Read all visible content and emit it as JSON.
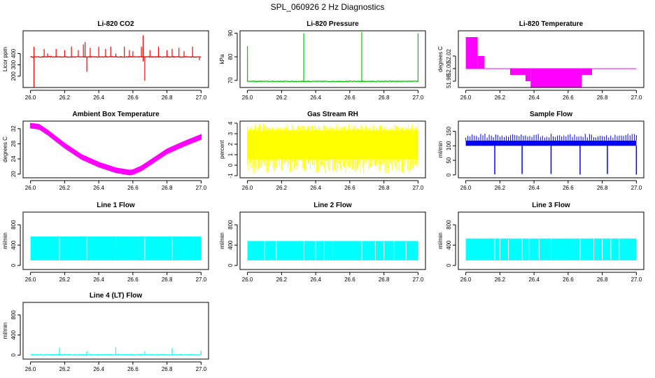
{
  "figure_title": "SPL_060926  2 Hz Diagnostics",
  "chart_data": [
    {
      "type": "line",
      "title": "Li-820 CO2",
      "ylabel": "Licor ppm",
      "xlim": [
        26.0,
        27.0
      ],
      "ylim": [
        100,
        600
      ],
      "xticks": [
        "26.0",
        "26.2",
        "26.4",
        "26.6",
        "26.8",
        "27.0"
      ],
      "xtick_values": [
        26.0,
        26.2,
        26.4,
        26.6,
        26.8,
        27.0
      ],
      "yticks": [
        "200",
        "300",
        "400"
      ],
      "ytick_values": [
        200,
        300,
        400
      ],
      "color": "#ff0000",
      "style": "line",
      "series": [
        {
          "name": "CO2",
          "baseline": 370,
          "x": [
            26.02,
            26.08,
            26.1,
            26.12,
            26.15,
            26.2,
            26.24,
            26.28,
            26.31,
            26.32,
            26.33,
            26.35,
            26.4,
            26.44,
            26.47,
            26.5,
            26.55,
            26.58,
            26.6,
            26.65,
            26.66,
            26.67,
            26.7,
            26.75,
            26.8,
            26.83,
            26.87,
            26.9,
            26.95
          ],
          "y": [
            460,
            440,
            400,
            380,
            440,
            430,
            460,
            430,
            480,
            500,
            240,
            450,
            460,
            440,
            460,
            400,
            460,
            430,
            420,
            460,
            560,
            160,
            430,
            460,
            430,
            440,
            450,
            420,
            460
          ],
          "dips": [
            {
              "x": 26.02,
              "y": 100
            },
            {
              "x": 26.66,
              "y": 330
            },
            {
              "x": 26.99,
              "y": 340
            }
          ]
        }
      ]
    },
    {
      "type": "line",
      "title": "Li-820 Pressure",
      "ylabel": "kPa",
      "xlim": [
        26.0,
        27.0
      ],
      "ylim": [
        67,
        91
      ],
      "xticks": [
        "26.0",
        "26.2",
        "26.4",
        "26.6",
        "26.8",
        "27.0"
      ],
      "xtick_values": [
        26.0,
        26.2,
        26.4,
        26.6,
        26.8,
        27.0
      ],
      "yticks": [
        "70",
        "80",
        "90"
      ],
      "ytick_values": [
        70,
        80,
        90
      ],
      "color": "#00cc00",
      "style": "line",
      "series": [
        {
          "name": "Pressure",
          "baseline": 69.6,
          "x": [
            26.0,
            26.33,
            26.67,
            27.0
          ],
          "y": [
            84.5,
            90.0,
            90.5,
            90.0
          ],
          "dips": []
        }
      ]
    },
    {
      "type": "step",
      "title": "Li-820 Temperature",
      "ylabel": "degrees C",
      "xlim": [
        26.0,
        27.0
      ],
      "ylim": [
        51.97,
        52.06
      ],
      "xticks": [
        "26.0",
        "26.2",
        "26.4",
        "26.6",
        "26.8",
        "27.0"
      ],
      "xtick_values": [
        26.0,
        26.2,
        26.4,
        26.6,
        26.8,
        27.0
      ],
      "yticks": [
        "51.98",
        "52.00",
        "52.02"
      ],
      "ytick_values": [
        51.98,
        52.0,
        52.02
      ],
      "color": "#ff00ff",
      "style": "step",
      "series": [
        {
          "name": "Temperature",
          "baseline": 52.0,
          "blocks": [
            [
              26.0,
              26.07,
              52.0,
              52.05
            ],
            [
              26.07,
              26.11,
              52.0,
              52.02
            ],
            [
              26.26,
              26.35,
              51.99,
              52.0
            ],
            [
              26.35,
              26.38,
              51.98,
              52.0
            ],
            [
              26.38,
              26.68,
              51.97,
              52.0
            ],
            [
              26.68,
              26.74,
              51.99,
              52.0
            ]
          ]
        }
      ]
    },
    {
      "type": "band",
      "title": "Ambient Box Temperature",
      "ylabel": "degrees C",
      "xlim": [
        26.0,
        27.0
      ],
      "ylim": [
        19,
        34
      ],
      "xticks": [
        "26.0",
        "26.2",
        "26.4",
        "26.6",
        "26.8",
        "27.0"
      ],
      "xtick_values": [
        26.0,
        26.2,
        26.4,
        26.6,
        26.8,
        27.0
      ],
      "yticks": [
        "20",
        "24",
        "28",
        "32"
      ],
      "ytick_values": [
        20,
        24,
        28,
        32
      ],
      "color": "#ff00ff",
      "style": "band",
      "series": [
        {
          "name": "Box Temp",
          "half_width": 0.6,
          "x": [
            26.0,
            26.05,
            26.1,
            26.2,
            26.3,
            26.4,
            26.5,
            26.58,
            26.6,
            26.65,
            26.7,
            26.8,
            26.9,
            27.0
          ],
          "y": [
            32.8,
            32.5,
            31.0,
            27.5,
            24.5,
            22.5,
            21.0,
            20.4,
            20.5,
            21.5,
            23.0,
            26.0,
            28.0,
            29.8
          ]
        }
      ]
    },
    {
      "type": "band",
      "title": "Gas Stream RH",
      "ylabel": "percent",
      "xlim": [
        26.0,
        27.0
      ],
      "ylim": [
        -1.2,
        4.2
      ],
      "xticks": [
        "26.0",
        "26.2",
        "26.4",
        "26.6",
        "26.8",
        "27.0"
      ],
      "xtick_values": [
        26.0,
        26.2,
        26.4,
        26.6,
        26.8,
        27.0
      ],
      "yticks": [
        "-1",
        "0",
        "1",
        "2",
        "3",
        "4"
      ],
      "ytick_values": [
        -1,
        0,
        1,
        2,
        3,
        4
      ],
      "color": "#ffff00",
      "style": "band",
      "series": [
        {
          "name": "RH",
          "x": [
            26.0,
            27.0
          ],
          "upper": [
            3.3,
            3.3
          ],
          "lower": [
            0.6,
            0.6
          ]
        }
      ]
    },
    {
      "type": "line",
      "title": "Sample Flow",
      "ylabel": "ml/min",
      "xlim": [
        26.0,
        27.0
      ],
      "ylim": [
        -10,
        185
      ],
      "xticks": [
        "26.0",
        "26.2",
        "26.4",
        "26.6",
        "26.8",
        "27.0"
      ],
      "xtick_values": [
        26.0,
        26.2,
        26.4,
        26.6,
        26.8,
        27.0
      ],
      "yticks": [
        "0",
        "50",
        "100",
        "150"
      ],
      "ytick_values": [
        0,
        50,
        100,
        150
      ],
      "color": "#0000ff",
      "style": "band",
      "series": [
        {
          "name": "Sample Flow",
          "upper": 118,
          "lower": 100,
          "dips": [
            {
              "x": 26.17,
              "y": 2
            },
            {
              "x": 26.33,
              "y": 3
            },
            {
              "x": 26.5,
              "y": 3
            },
            {
              "x": 26.67,
              "y": 1
            },
            {
              "x": 26.83,
              "y": 3
            },
            {
              "x": 27.0,
              "y": 1
            }
          ]
        }
      ]
    },
    {
      "type": "band",
      "title": "Line 1 Flow",
      "ylabel": "ml/min",
      "xlim": [
        26.0,
        27.0
      ],
      "ylim": [
        -80,
        1050
      ],
      "xticks": [
        "26.0",
        "26.2",
        "26.4",
        "26.6",
        "26.8",
        "27.0"
      ],
      "xtick_values": [
        26.0,
        26.2,
        26.4,
        26.6,
        26.8,
        27.0
      ],
      "yticks": [
        "0",
        "400",
        "800"
      ],
      "ytick_values": [
        0,
        400,
        800
      ],
      "color": "#00ffff",
      "style": "band",
      "series": [
        {
          "name": "Line 1",
          "upper": 570,
          "lower": 100,
          "gaps": [
            26.17,
            26.33,
            26.5,
            26.67,
            26.83
          ]
        }
      ]
    },
    {
      "type": "band",
      "title": "Line 2 Flow",
      "ylabel": "ml/min",
      "xlim": [
        26.0,
        27.0
      ],
      "ylim": [
        -80,
        1050
      ],
      "xticks": [
        "26.0",
        "26.2",
        "26.4",
        "26.6",
        "26.8",
        "27.0"
      ],
      "xtick_values": [
        26.0,
        26.2,
        26.4,
        26.6,
        26.8,
        27.0
      ],
      "yticks": [
        "0",
        "400",
        "800"
      ],
      "ytick_values": [
        0,
        400,
        800
      ],
      "color": "#00ffff",
      "style": "band",
      "series": [
        {
          "name": "Line 2",
          "upper": 480,
          "lower": 100,
          "gaps": [
            26.1,
            26.17,
            26.33,
            26.4,
            26.45,
            26.5,
            26.67,
            26.75,
            26.8,
            26.86,
            26.93
          ]
        }
      ]
    },
    {
      "type": "band",
      "title": "Line 3 Flow",
      "ylabel": "ml/min",
      "xlim": [
        26.0,
        27.0
      ],
      "ylim": [
        -80,
        1050
      ],
      "xticks": [
        "26.0",
        "26.2",
        "26.4",
        "26.6",
        "26.8",
        "27.0"
      ],
      "xtick_values": [
        26.0,
        26.2,
        26.4,
        26.6,
        26.8,
        27.0
      ],
      "yticks": [
        "0",
        "400",
        "800"
      ],
      "ytick_values": [
        0,
        400,
        800
      ],
      "color": "#00ffff",
      "style": "band",
      "series": [
        {
          "name": "Line 3",
          "upper": 530,
          "lower": 100,
          "gaps": [
            26.17,
            26.2,
            26.25,
            26.33,
            26.37,
            26.43,
            26.5,
            26.67,
            26.75,
            26.8,
            26.85,
            26.9
          ]
        }
      ]
    },
    {
      "type": "line",
      "title": "Line 4 (LT) Flow",
      "ylabel": "ml/min",
      "xlim": [
        26.0,
        27.0
      ],
      "ylim": [
        -80,
        1050
      ],
      "xticks": [
        "26.0",
        "26.2",
        "26.4",
        "26.6",
        "26.8",
        "27.0"
      ],
      "xtick_values": [
        26.0,
        26.2,
        26.4,
        26.6,
        26.8,
        27.0
      ],
      "yticks": [
        "0",
        "400",
        "800"
      ],
      "ytick_values": [
        0,
        400,
        800
      ],
      "color": "#00ffff",
      "style": "line",
      "series": [
        {
          "name": "Line 4",
          "baseline": 5,
          "x": [
            26.17,
            26.33,
            26.5,
            26.67,
            26.83,
            27.0
          ],
          "y": [
            150,
            80,
            160,
            80,
            140,
            90
          ],
          "dips": []
        }
      ]
    }
  ]
}
